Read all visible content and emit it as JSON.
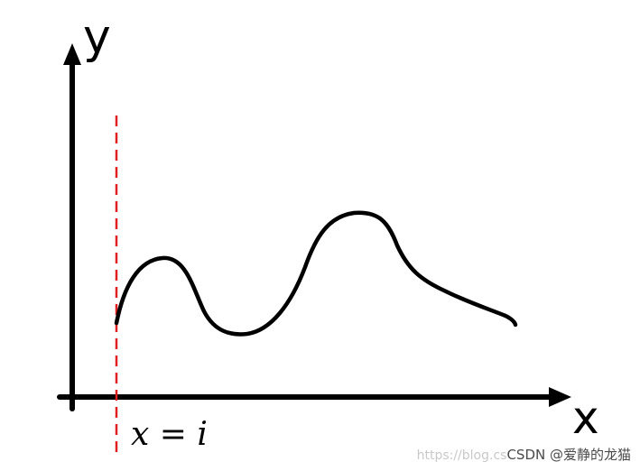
{
  "diagram": {
    "y_axis_label": "y",
    "x_axis_label": "x",
    "marker_label": "x = i",
    "colors": {
      "axis": "#000000",
      "curve": "#000000",
      "marker_line": "#e02020"
    }
  },
  "watermark": {
    "url_text": "https://blog.cs",
    "brand_text": "CSDN @爱静的龙猫"
  }
}
